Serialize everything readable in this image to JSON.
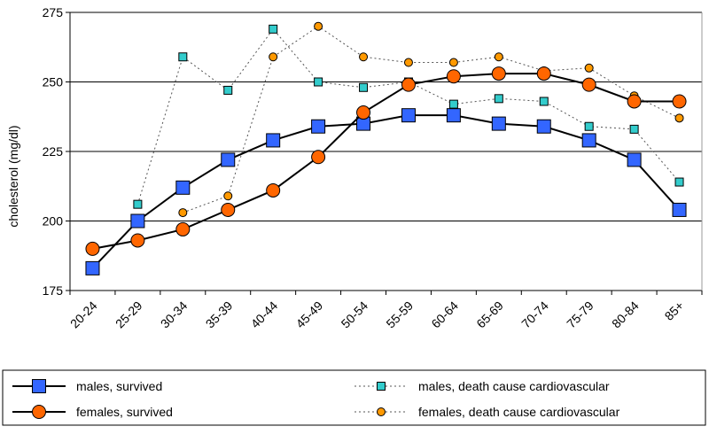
{
  "chart_data": {
    "type": "line",
    "title": "",
    "xlabel": "",
    "ylabel": "cholesterol (mg/dl)",
    "ylim": [
      175,
      275
    ],
    "yticks": [
      175,
      200,
      225,
      250,
      275
    ],
    "grid": true,
    "legend_position": "bottom",
    "categories": [
      "20-24",
      "25-29",
      "30-34",
      "35-39",
      "40-44",
      "45-49",
      "50-54",
      "55-59",
      "60-64",
      "65-69",
      "70-74",
      "75-79",
      "80-84",
      "85+"
    ],
    "series": [
      {
        "name": "males, survived",
        "style": "solid",
        "marker": "square",
        "color": "#3366ff",
        "values": [
          183,
          200,
          212,
          222,
          229,
          234,
          235,
          238,
          238,
          235,
          234,
          229,
          222,
          204
        ]
      },
      {
        "name": "females, survived",
        "style": "solid",
        "marker": "circle",
        "color": "#ff6600",
        "values": [
          190,
          193,
          197,
          204,
          211,
          223,
          239,
          249,
          252,
          253,
          253,
          249,
          243,
          243
        ]
      },
      {
        "name": "males, death cause cardiovascular",
        "style": "dotted",
        "marker": "square",
        "color": "#33cccc",
        "values": [
          null,
          206,
          259,
          247,
          269,
          250,
          248,
          250,
          242,
          244,
          243,
          234,
          233,
          214
        ]
      },
      {
        "name": "females, death cause cardiovascular",
        "style": "dotted",
        "marker": "circle",
        "color": "#ff9900",
        "values": [
          null,
          null,
          203,
          209,
          259,
          270,
          259,
          257,
          257,
          259,
          254,
          255,
          245,
          237
        ]
      }
    ]
  }
}
